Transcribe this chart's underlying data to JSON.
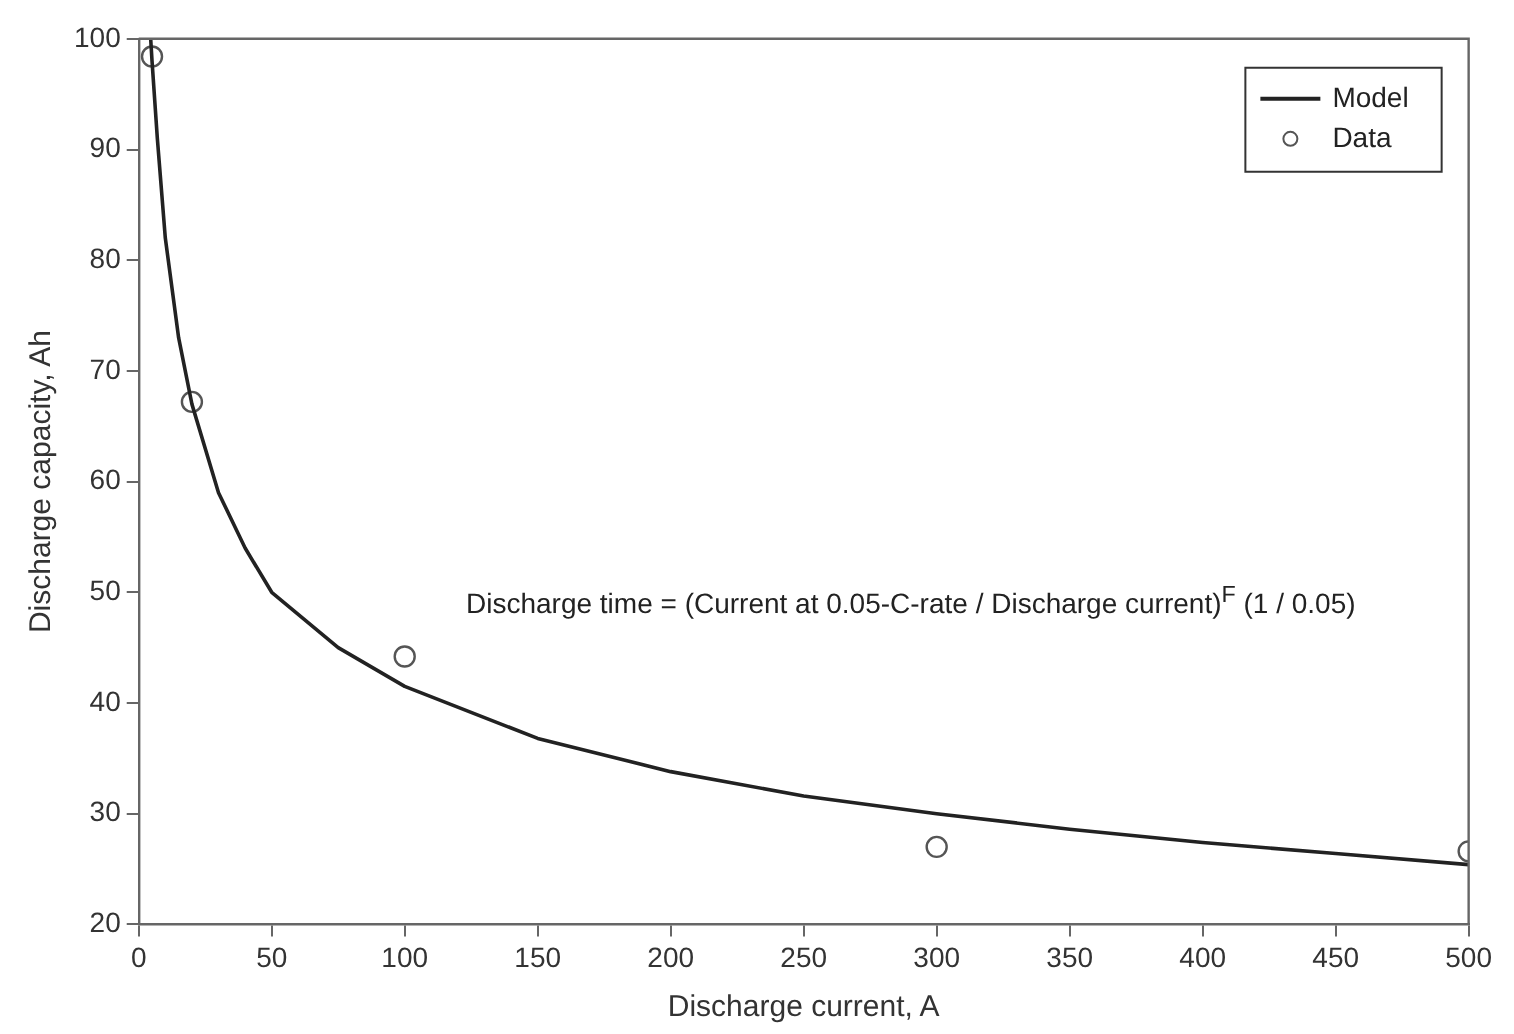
{
  "chart_data": {
    "type": "line",
    "xlabel": "Discharge current, A",
    "ylabel": "Discharge capacity, Ah",
    "xlim": [
      0,
      500
    ],
    "ylim": [
      20,
      100
    ],
    "xticks": [
      0,
      50,
      100,
      150,
      200,
      250,
      300,
      350,
      400,
      450,
      500
    ],
    "yticks": [
      20,
      30,
      40,
      50,
      60,
      70,
      80,
      90,
      100
    ],
    "grid": false,
    "legend": "top right",
    "annotations": [
      "Discharge time = (Current at 0.05-C-rate / Discharge current)$^{F}$ (1 / 0.05)"
    ],
    "series": [
      {
        "name": "Model",
        "type": "line",
        "color": "#222222",
        "marker": "none",
        "line_style": "solid",
        "x": [
          4.5,
          5,
          7,
          10,
          15,
          20,
          30,
          40,
          50,
          75,
          100,
          150,
          200,
          250,
          300,
          350,
          400,
          450,
          500
        ],
        "values": [
          100,
          98,
          91,
          82,
          73,
          67,
          59,
          54,
          50,
          45,
          41.5,
          36.8,
          33.8,
          31.6,
          30,
          28.6,
          27.4,
          26.4,
          25.4
        ]
      },
      {
        "name": "Data",
        "type": "scatter",
        "color": "#555555",
        "marker": "circle",
        "x": [
          5,
          20,
          100,
          300,
          500
        ],
        "values": [
          98.4,
          67.2,
          44.2,
          27.0,
          26.6
        ]
      }
    ]
  }
}
